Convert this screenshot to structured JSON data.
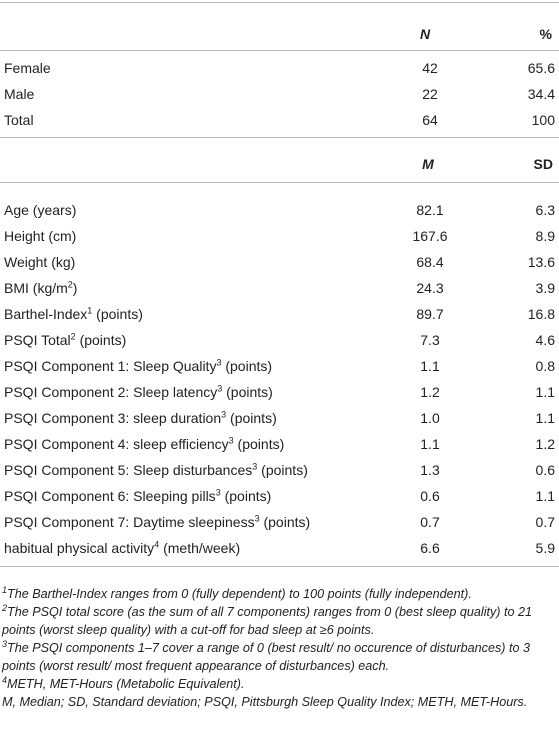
{
  "table1": {
    "header": {
      "n": "N",
      "pct": "%"
    },
    "rows": [
      [
        "Female",
        "42",
        "65.6"
      ],
      [
        "Male",
        "22",
        "34.4"
      ],
      [
        "Total",
        "64",
        "100"
      ]
    ]
  },
  "table2": {
    "header": {
      "m": "M",
      "sd": "SD"
    },
    "rows": [
      [
        {
          "text": "Age (years)"
        },
        "82.1",
        "6.3"
      ],
      [
        {
          "text": "Height (cm)"
        },
        "167.6",
        "8.9"
      ],
      [
        {
          "text": "Weight (kg)"
        },
        "68.4",
        "13.6"
      ],
      [
        {
          "text": "BMI (kg/m",
          "sup": "2",
          "after": ")"
        },
        "24.3",
        "3.9"
      ],
      [
        {
          "text": "Barthel-Index",
          "sup": "1",
          "after": " (points)"
        },
        "89.7",
        "16.8"
      ],
      [
        {
          "text": "PSQI Total",
          "sup": "2",
          "after": " (points)"
        },
        "7.3",
        "4.6"
      ],
      [
        {
          "text": "PSQI Component 1: Sleep Quality",
          "sup": "3",
          "after": " (points)"
        },
        "1.1",
        "0.8"
      ],
      [
        {
          "text": "PSQI Component 2: Sleep latency",
          "sup": "3",
          "after": " (points)"
        },
        "1.2",
        "1.1"
      ],
      [
        {
          "text": "PSQI Component 3: sleep duration",
          "sup": "3",
          "after": " (points)"
        },
        "1.0",
        "1.1"
      ],
      [
        {
          "text": "PSQI Component 4: sleep efficiency",
          "sup": "3",
          "after": " (points)"
        },
        "1.1",
        "1.2"
      ],
      [
        {
          "text": "PSQI Component 5: Sleep disturbances",
          "sup": "3",
          "after": " (points)"
        },
        "1.3",
        "0.6"
      ],
      [
        {
          "text": "PSQI Component 6: Sleeping pills",
          "sup": "3",
          "after": " (points)"
        },
        "0.6",
        "1.1"
      ],
      [
        {
          "text": "PSQI Component 7: Daytime sleepiness",
          "sup": "3",
          "after": " (points)"
        },
        "0.7",
        "0.7"
      ],
      [
        {
          "text": "habitual physical activity",
          "sup": "4",
          "after": " (meth/week)"
        },
        "6.6",
        "5.9"
      ]
    ]
  },
  "footnotes": [
    {
      "sup": "1",
      "text": "The Barthel-Index ranges from 0 (fully dependent) to 100 points (fully independent)."
    },
    {
      "sup": "2",
      "text": "The PSQI total score (as the sum of all 7 components) ranges from 0 (best sleep quality) to 21 points (worst sleep quality) with a cut-off for bad sleep at ≥6 points."
    },
    {
      "sup": "3",
      "text": "The PSQI components 1–7 cover a range of 0 (best result/ no occurence of disturbances) to 3 points (worst result/ most frequent appearance of disturbances) each."
    },
    {
      "sup": "4",
      "text": "METH, MET-Hours (Metabolic Equivalent)."
    },
    {
      "text": "M, Median; SD, Standard deviation; PSQI, Pittsburgh Sleep Quality Index; METH, MET-Hours."
    }
  ]
}
